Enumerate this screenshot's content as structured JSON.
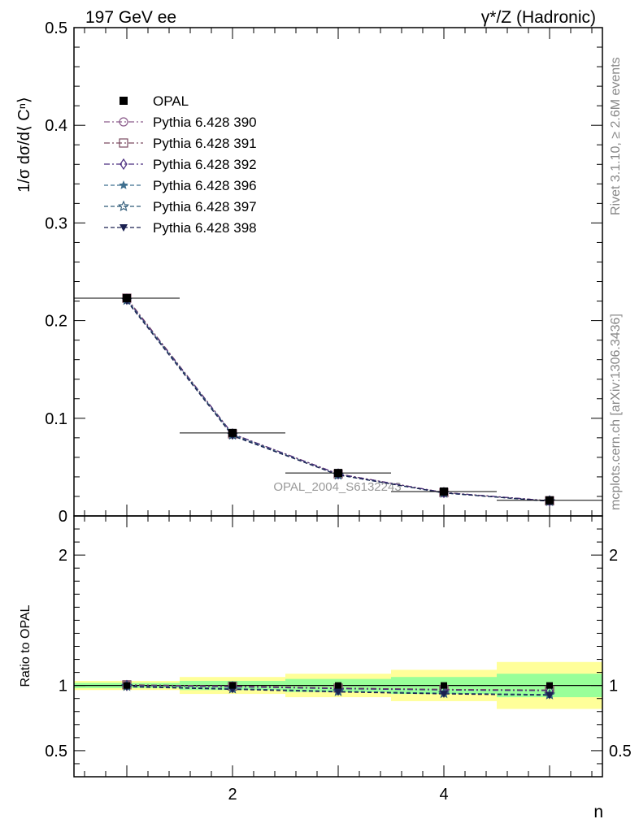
{
  "header": {
    "left_title": "197 GeV ee",
    "right_title": "γ*/Z (Hadronic)"
  },
  "side_labels": {
    "rivet": "Rivet 3.1.10, ≥ 2.6M events",
    "mcplots": "mcplots.cern.ch [arXiv:1306.3436]"
  },
  "watermark": "OPAL_2004_S6132243",
  "chart_data": [
    {
      "type": "line",
      "panel": "main",
      "ylabel": "1/σ dσ/d⟨ Cⁿ⟩",
      "xlim": [
        0.5,
        5.5
      ],
      "ylim": [
        0,
        0.5
      ],
      "yticks": [
        0,
        0.1,
        0.2,
        0.3,
        0.4,
        0.5
      ],
      "ytick_labels": [
        "0",
        "0.1",
        "0.2",
        "0.3",
        "0.4",
        "0.5"
      ],
      "x": [
        1,
        2,
        3,
        4,
        5
      ],
      "legend_position": "top-left",
      "series": [
        {
          "name": "OPAL",
          "marker": "filled-square",
          "color": "#000000",
          "values": [
            0.223,
            0.085,
            0.044,
            0.025,
            0.016
          ]
        },
        {
          "name": "Pythia 6.428 390",
          "marker": "open-circle",
          "color": "#8a5a8a",
          "dash": "dashdot",
          "values": [
            0.222,
            0.084,
            0.043,
            0.024,
            0.0155
          ]
        },
        {
          "name": "Pythia 6.428 391",
          "marker": "open-square",
          "color": "#7a4a60",
          "dash": "dashdot",
          "values": [
            0.223,
            0.084,
            0.043,
            0.024,
            0.0155
          ]
        },
        {
          "name": "Pythia 6.428 392",
          "marker": "open-diamond",
          "color": "#4b2d7f",
          "dash": "dashdot",
          "values": [
            0.222,
            0.084,
            0.043,
            0.024,
            0.0155
          ]
        },
        {
          "name": "Pythia 6.428 396",
          "marker": "filled-star",
          "color": "#3f6f8f",
          "dash": "dashed",
          "values": [
            0.221,
            0.083,
            0.042,
            0.0235,
            0.015
          ]
        },
        {
          "name": "Pythia 6.428 397",
          "marker": "open-star",
          "color": "#2f5a78",
          "dash": "dashed",
          "values": [
            0.221,
            0.083,
            0.042,
            0.0235,
            0.015
          ]
        },
        {
          "name": "Pythia 6.428 398",
          "marker": "filled-triangle-down",
          "color": "#1a2050",
          "dash": "dashed",
          "values": [
            0.22,
            0.082,
            0.042,
            0.0235,
            0.015
          ]
        }
      ]
    },
    {
      "type": "line",
      "panel": "ratio",
      "ylabel": "Ratio to OPAL",
      "xlabel": "n",
      "xlim": [
        0.5,
        5.5
      ],
      "ylim": [
        0.3,
        2.3
      ],
      "yticks": [
        0.5,
        1,
        2
      ],
      "ytick_labels": [
        "0.5",
        "1",
        "2"
      ],
      "xticks": [
        2,
        4
      ],
      "xtick_labels": [
        "2",
        "4"
      ],
      "x": [
        1,
        2,
        3,
        4,
        5
      ],
      "bands": {
        "edges": [
          0.5,
          1.5,
          2.5,
          3.5,
          4.5,
          5.5
        ],
        "yellow": [
          [
            0.965,
            1.035
          ],
          [
            0.935,
            1.065
          ],
          [
            0.91,
            1.09
          ],
          [
            0.88,
            1.12
          ],
          [
            0.82,
            1.18
          ]
        ],
        "green": [
          [
            0.98,
            1.02
          ],
          [
            0.965,
            1.035
          ],
          [
            0.95,
            1.05
          ],
          [
            0.935,
            1.065
          ],
          [
            0.91,
            1.09
          ]
        ]
      },
      "series": [
        {
          "name": "Pythia 6.428 390",
          "values": [
            1.005,
            0.995,
            0.98,
            0.97,
            0.965
          ]
        },
        {
          "name": "Pythia 6.428 391",
          "values": [
            1.005,
            0.995,
            0.98,
            0.97,
            0.965
          ]
        },
        {
          "name": "Pythia 6.428 392",
          "values": [
            1.0,
            0.99,
            0.975,
            0.965,
            0.96
          ]
        },
        {
          "name": "Pythia 6.428 396",
          "values": [
            0.995,
            0.975,
            0.955,
            0.94,
            0.93
          ]
        },
        {
          "name": "Pythia 6.428 397",
          "values": [
            0.995,
            0.975,
            0.955,
            0.94,
            0.93
          ]
        },
        {
          "name": "Pythia 6.428 398",
          "values": [
            0.99,
            0.97,
            0.95,
            0.935,
            0.925
          ]
        }
      ]
    }
  ]
}
